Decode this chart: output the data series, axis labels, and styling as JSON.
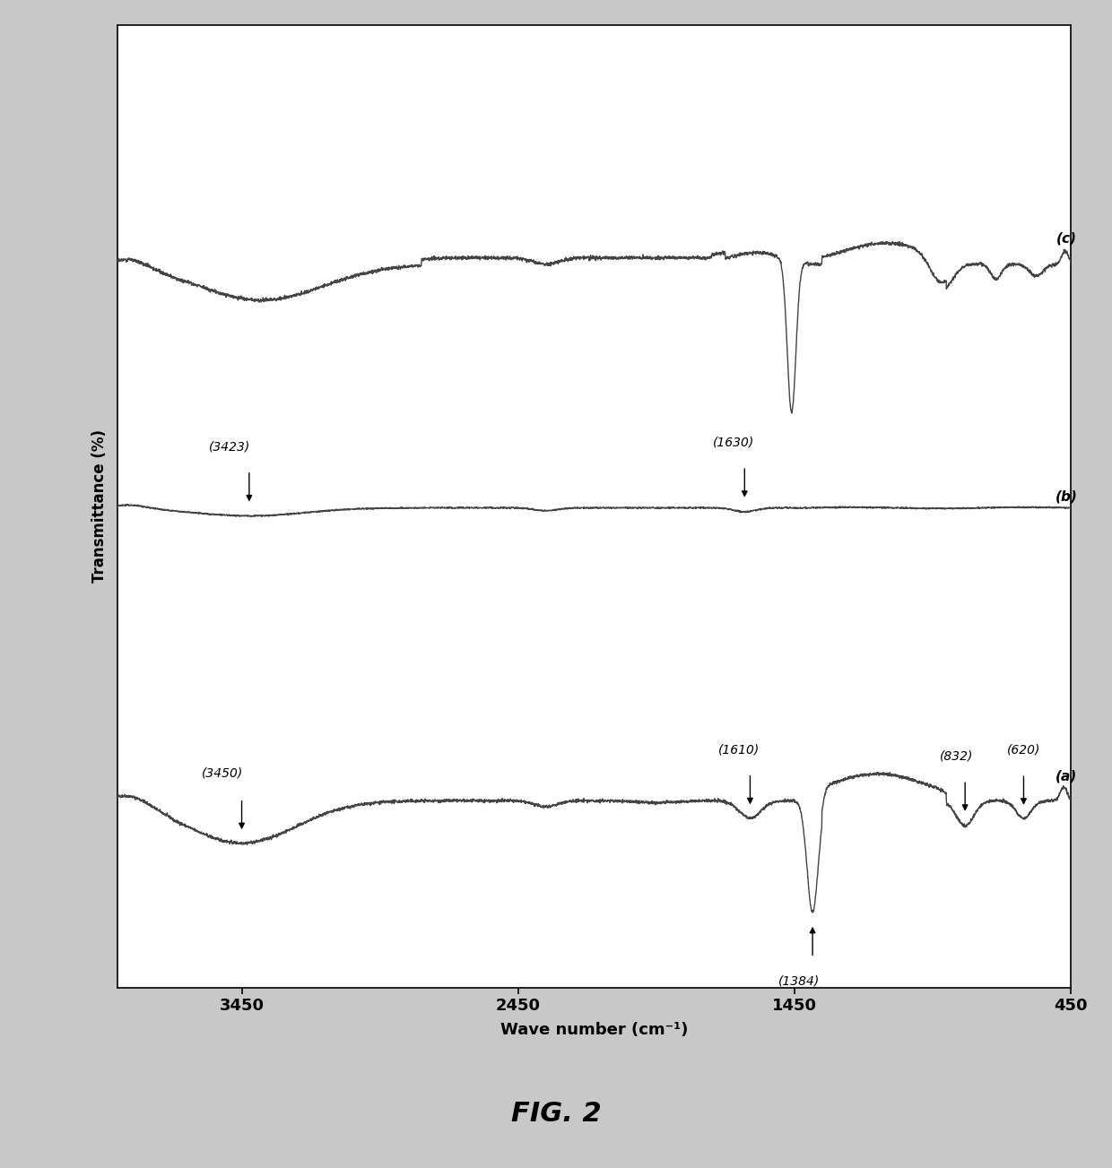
{
  "title": "FIG. 2",
  "xlabel": "Wave number (cm⁻¹)",
  "ylabel": "Transmittance (%)",
  "x_min": 450,
  "x_max": 3900,
  "background_color": "#c8c8c8",
  "plot_bg_color": "#ffffff",
  "line_color": "#444444",
  "label_c": "(c)",
  "label_b": "(b)",
  "label_a": "(a)"
}
